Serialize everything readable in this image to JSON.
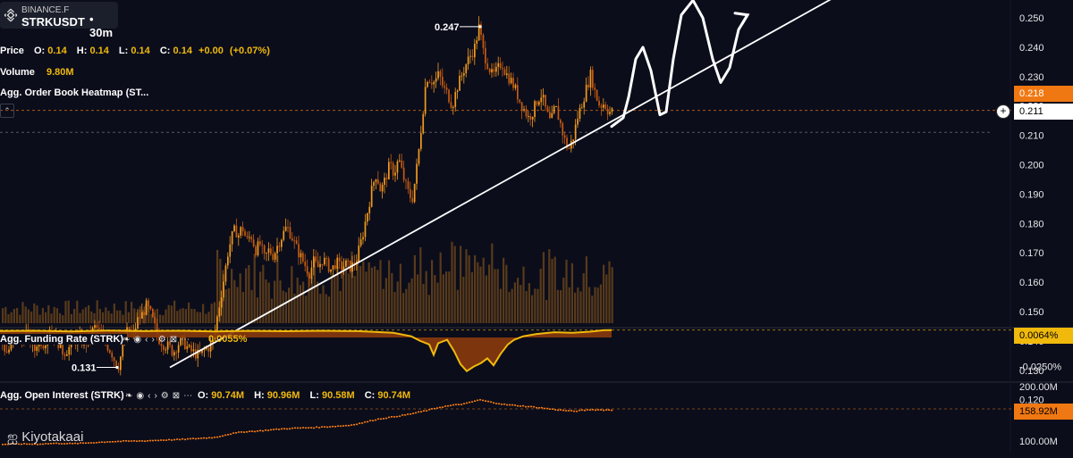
{
  "header": {
    "exchange": "BINANCE.F",
    "symbol": "STRKUSDT",
    "timeframe": "30m",
    "price_label": "Price",
    "ohlc": {
      "o_label": "O:",
      "o": "0.14",
      "h_label": "H:",
      "h": "0.14",
      "l_label": "L:",
      "l": "0.14",
      "c_label": "C:",
      "c": "0.14",
      "change": "+0.00",
      "change_pct": "(+0.07%)"
    },
    "volume_label": "Volume",
    "volume_value": "9.80M",
    "heatmap_label": "Agg. Order Book Heatmap (ST..."
  },
  "funding": {
    "label": "Agg. Funding Rate (STRK)",
    "value": "0.0055%",
    "tag": "0.0064%",
    "axis_low": "-0.0250%"
  },
  "open_interest": {
    "label": "Agg. Open Interest (STRK)",
    "o_label": "O:",
    "o": "90.74M",
    "h_label": "H:",
    "h": "90.96M",
    "l_label": "L:",
    "l": "90.58M",
    "c_label": "C:",
    "c": "90.74M",
    "tag": "158.92M",
    "axis_top": "200.00M",
    "axis_bottom": "100.00M"
  },
  "price_tags": {
    "last": "0.218",
    "cursor": "0.211"
  },
  "watermark": "Kiyotakaai",
  "colors": {
    "background": "#0b0d1b",
    "candle": "#f29a1e",
    "candle_dark": "#c55a12",
    "volume": "#b5711c",
    "funding": "#f0b90b",
    "funding_neg": "#8a3a0d",
    "tag_orange": "#f07812",
    "trendline": "#ffffff"
  },
  "chart_data": {
    "type": "candlestick",
    "title": "",
    "price_axis": {
      "ticks": [
        0.25,
        0.24,
        0.23,
        0.22,
        0.21,
        0.2,
        0.19,
        0.18,
        0.17,
        0.16,
        0.15,
        0.14,
        0.13,
        0.12
      ],
      "tick_labels": [
        "0.250",
        "0.240",
        "0.230",
        "0.220",
        "0.210",
        "0.200",
        "0.190",
        "0.180",
        "0.170",
        "0.160",
        "0.150",
        "0.140",
        "0.130",
        "0.120"
      ],
      "ylim": [
        0.115,
        0.255
      ]
    },
    "annotations": [
      {
        "text": "0.247",
        "value": 0.247
      },
      {
        "text": "0.131",
        "value": 0.131
      }
    ],
    "price_path": [
      [
        0,
        0.141
      ],
      [
        6,
        0.136
      ],
      [
        12,
        0.138
      ],
      [
        18,
        0.142
      ],
      [
        23,
        0.139
      ],
      [
        28,
        0.143
      ],
      [
        33,
        0.14
      ],
      [
        38,
        0.137
      ],
      [
        42,
        0.141
      ],
      [
        48,
        0.139
      ],
      [
        55,
        0.144
      ],
      [
        62,
        0.141
      ],
      [
        70,
        0.136
      ],
      [
        78,
        0.138
      ],
      [
        86,
        0.141
      ],
      [
        94,
        0.139
      ],
      [
        100,
        0.142
      ],
      [
        106,
        0.145
      ],
      [
        112,
        0.142
      ],
      [
        118,
        0.139
      ],
      [
        124,
        0.136
      ],
      [
        128,
        0.133
      ],
      [
        131,
        0.131
      ],
      [
        136,
        0.137
      ],
      [
        142,
        0.144
      ],
      [
        148,
        0.142
      ],
      [
        153,
        0.147
      ],
      [
        158,
        0.149
      ],
      [
        163,
        0.152
      ],
      [
        168,
        0.149
      ],
      [
        172,
        0.145
      ],
      [
        176,
        0.141
      ],
      [
        182,
        0.139
      ],
      [
        188,
        0.138
      ],
      [
        193,
        0.136
      ],
      [
        198,
        0.139
      ],
      [
        204,
        0.14
      ],
      [
        210,
        0.137
      ],
      [
        216,
        0.136
      ],
      [
        222,
        0.135
      ],
      [
        228,
        0.137
      ],
      [
        233,
        0.138
      ],
      [
        238,
        0.14
      ],
      [
        242,
        0.148
      ],
      [
        246,
        0.155
      ],
      [
        250,
        0.162
      ],
      [
        254,
        0.17
      ],
      [
        258,
        0.175
      ],
      [
        262,
        0.178
      ],
      [
        266,
        0.176
      ],
      [
        270,
        0.179
      ],
      [
        275,
        0.174
      ],
      [
        280,
        0.176
      ],
      [
        285,
        0.171
      ],
      [
        290,
        0.173
      ],
      [
        295,
        0.168
      ],
      [
        300,
        0.171
      ],
      [
        305,
        0.169
      ],
      [
        310,
        0.173
      ],
      [
        315,
        0.176
      ],
      [
        320,
        0.179
      ],
      [
        325,
        0.176
      ],
      [
        330,
        0.172
      ],
      [
        335,
        0.169
      ],
      [
        340,
        0.166
      ],
      [
        345,
        0.163
      ],
      [
        350,
        0.167
      ],
      [
        355,
        0.165
      ],
      [
        360,
        0.168
      ],
      [
        365,
        0.166
      ],
      [
        370,
        0.164
      ],
      [
        375,
        0.167
      ],
      [
        380,
        0.165
      ],
      [
        386,
        0.166
      ],
      [
        392,
        0.165
      ],
      [
        398,
        0.168
      ],
      [
        404,
        0.175
      ],
      [
        408,
        0.181
      ],
      [
        412,
        0.187
      ],
      [
        416,
        0.193
      ],
      [
        420,
        0.197
      ],
      [
        425,
        0.191
      ],
      [
        430,
        0.195
      ],
      [
        435,
        0.2
      ],
      [
        440,
        0.197
      ],
      [
        445,
        0.202
      ],
      [
        450,
        0.196
      ],
      [
        455,
        0.191
      ],
      [
        460,
        0.188
      ],
      [
        464,
        0.196
      ],
      [
        468,
        0.206
      ],
      [
        472,
        0.218
      ],
      [
        476,
        0.23
      ],
      [
        480,
        0.229
      ],
      [
        485,
        0.228
      ],
      [
        490,
        0.231
      ],
      [
        495,
        0.226
      ],
      [
        500,
        0.224
      ],
      [
        505,
        0.22
      ],
      [
        510,
        0.226
      ],
      [
        515,
        0.23
      ],
      [
        520,
        0.234
      ],
      [
        525,
        0.237
      ],
      [
        530,
        0.24
      ],
      [
        535,
        0.247
      ],
      [
        540,
        0.238
      ],
      [
        545,
        0.234
      ],
      [
        550,
        0.23
      ],
      [
        555,
        0.232
      ],
      [
        560,
        0.235
      ],
      [
        565,
        0.231
      ],
      [
        570,
        0.229
      ],
      [
        575,
        0.226
      ],
      [
        580,
        0.222
      ],
      [
        585,
        0.219
      ],
      [
        590,
        0.216
      ],
      [
        595,
        0.218
      ],
      [
        600,
        0.222
      ],
      [
        605,
        0.224
      ],
      [
        610,
        0.218
      ],
      [
        615,
        0.214
      ],
      [
        620,
        0.22
      ],
      [
        625,
        0.215
      ],
      [
        630,
        0.209
      ],
      [
        635,
        0.205
      ],
      [
        640,
        0.209
      ],
      [
        645,
        0.216
      ],
      [
        650,
        0.221
      ],
      [
        655,
        0.226
      ],
      [
        660,
        0.231
      ],
      [
        665,
        0.224
      ],
      [
        670,
        0.22
      ],
      [
        675,
        0.221
      ],
      [
        680,
        0.218
      ],
      [
        684,
        0.218
      ]
    ],
    "projection": [
      [
        684,
        0.213
      ],
      [
        697,
        0.216
      ],
      [
        703,
        0.223
      ],
      [
        711,
        0.236
      ],
      [
        719,
        0.24
      ],
      [
        728,
        0.232
      ],
      [
        738,
        0.217
      ],
      [
        745,
        0.218
      ],
      [
        753,
        0.236
      ],
      [
        762,
        0.251
      ],
      [
        775,
        0.256
      ],
      [
        786,
        0.25
      ],
      [
        797,
        0.236
      ],
      [
        806,
        0.228
      ],
      [
        816,
        0.233
      ],
      [
        826,
        0.246
      ],
      [
        836,
        0.251
      ]
    ],
    "trendline": [
      [
        190,
        0.131
      ],
      [
        945,
        0.259
      ]
    ],
    "funding_path": [
      [
        0,
        0.0056
      ],
      [
        40,
        0.0058
      ],
      [
        80,
        0.0052
      ],
      [
        120,
        0.006
      ],
      [
        160,
        0.0055
      ],
      [
        200,
        0.0058
      ],
      [
        240,
        0.0052
      ],
      [
        280,
        0.0057
      ],
      [
        320,
        0.0054
      ],
      [
        360,
        0.0058
      ],
      [
        400,
        0.0055
      ],
      [
        440,
        0.004
      ],
      [
        460,
        0.001
      ],
      [
        470,
        -0.003
      ],
      [
        480,
        -0.006
      ],
      [
        485,
        -0.015
      ],
      [
        490,
        -0.005
      ],
      [
        500,
        -0.002
      ],
      [
        508,
        -0.012
      ],
      [
        515,
        -0.023
      ],
      [
        522,
        -0.029
      ],
      [
        530,
        -0.025
      ],
      [
        538,
        -0.022
      ],
      [
        545,
        -0.018
      ],
      [
        552,
        -0.024
      ],
      [
        560,
        -0.014
      ],
      [
        568,
        -0.006
      ],
      [
        575,
        -0.002
      ],
      [
        585,
        0.001
      ],
      [
        600,
        0.003
      ],
      [
        620,
        0.0045
      ],
      [
        640,
        0.004
      ],
      [
        660,
        0.005
      ],
      [
        675,
        0.0062
      ],
      [
        684,
        0.0064
      ]
    ],
    "oi_path": [
      [
        0,
        95
      ],
      [
        20,
        96
      ],
      [
        40,
        95.5
      ],
      [
        60,
        97
      ],
      [
        80,
        96.5
      ],
      [
        100,
        98
      ],
      [
        120,
        100
      ],
      [
        140,
        101
      ],
      [
        160,
        101.5
      ],
      [
        180,
        103
      ],
      [
        200,
        104
      ],
      [
        220,
        106
      ],
      [
        240,
        108
      ],
      [
        255,
        114
      ],
      [
        270,
        118
      ],
      [
        290,
        120
      ],
      [
        310,
        123
      ],
      [
        330,
        125
      ],
      [
        350,
        126
      ],
      [
        370,
        128
      ],
      [
        390,
        130
      ],
      [
        405,
        135
      ],
      [
        420,
        141
      ],
      [
        440,
        146
      ],
      [
        455,
        150
      ],
      [
        470,
        155
      ],
      [
        490,
        163
      ],
      [
        505,
        167
      ],
      [
        520,
        170
      ],
      [
        535,
        177
      ],
      [
        550,
        172
      ],
      [
        565,
        168
      ],
      [
        580,
        166
      ],
      [
        600,
        163
      ],
      [
        620,
        159
      ],
      [
        640,
        156
      ],
      [
        660,
        159
      ],
      [
        684,
        158
      ]
    ]
  }
}
